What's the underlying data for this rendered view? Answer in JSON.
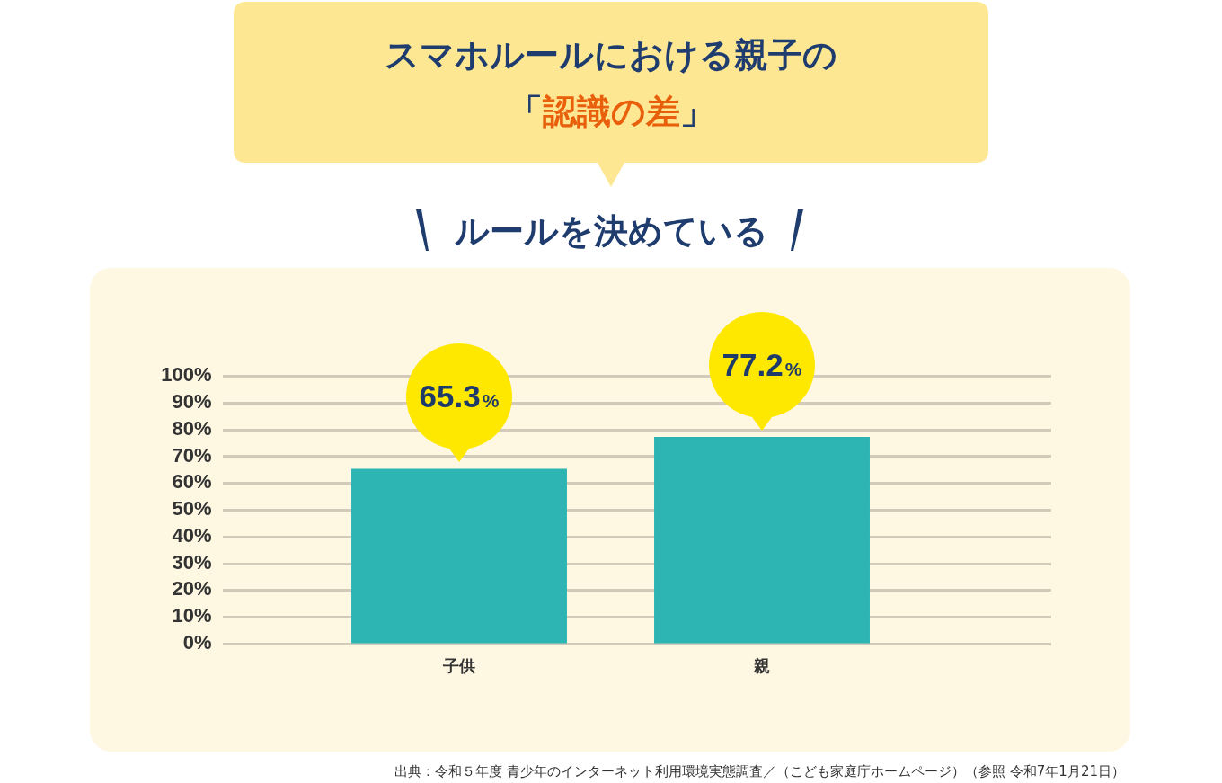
{
  "chart_data": {
    "type": "bar",
    "title": "スマホルールにおける親子の「認識の差」",
    "subtitle": "ルールを決めている",
    "categories": [
      "子供",
      "親"
    ],
    "values": [
      65.3,
      77.2
    ],
    "value_labels": [
      "65.3%",
      "77.2%"
    ],
    "color": "#2db5b4",
    "ylim": [
      0,
      100
    ],
    "yticks": [
      {
        "value": 0,
        "label": "0%"
      },
      {
        "value": 10,
        "label": "10%"
      },
      {
        "value": 20,
        "label": "20%"
      },
      {
        "value": 30,
        "label": "30%"
      },
      {
        "value": 40,
        "label": "40%"
      },
      {
        "value": 50,
        "label": "50%"
      },
      {
        "value": 60,
        "label": "60%"
      },
      {
        "value": 70,
        "label": "70%"
      },
      {
        "value": 80,
        "label": "80%"
      },
      {
        "value": 90,
        "label": "90%"
      },
      {
        "value": 100,
        "label": "100%"
      }
    ],
    "grid": "y",
    "annotations": [
      "出典：令和５年度 青少年のインターネット利用環境実態調査／（こども家庭庁ホームページ）（参照 令和7年1月21日）"
    ]
  }
}
